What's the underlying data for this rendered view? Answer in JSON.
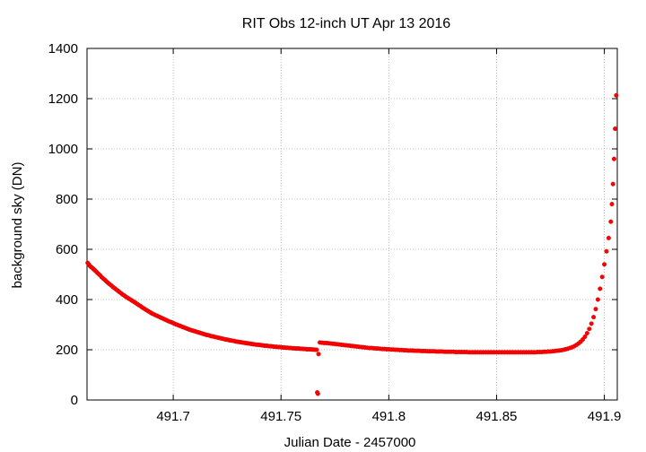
{
  "chart_data": {
    "type": "scatter",
    "title": "RIT Obs 12-inch UT Apr 13 2016",
    "xlabel": "Julian Date - 2457000",
    "ylabel": "background sky (DN)",
    "xlim": [
      491.66,
      491.906
    ],
    "ylim": [
      0,
      1400
    ],
    "x_ticks": [
      {
        "value": 491.7,
        "label": "491.7"
      },
      {
        "value": 491.75,
        "label": "491.75"
      },
      {
        "value": 491.8,
        "label": "491.8"
      },
      {
        "value": 491.85,
        "label": "491.85"
      },
      {
        "value": 491.9,
        "label": "491.9"
      }
    ],
    "y_ticks": [
      {
        "value": 0,
        "label": "0"
      },
      {
        "value": 200,
        "label": "200"
      },
      {
        "value": 400,
        "label": "400"
      },
      {
        "value": 600,
        "label": "600"
      },
      {
        "value": 800,
        "label": "800"
      },
      {
        "value": 1000,
        "label": "1000"
      },
      {
        "value": 1200,
        "label": "1200"
      },
      {
        "value": 1400,
        "label": "1400"
      }
    ],
    "grid": true,
    "marker_color": "#ff0000",
    "points": [
      [
        491.6603,
        546
      ],
      [
        491.6608,
        540
      ],
      [
        491.6613,
        534
      ],
      [
        491.6618,
        530
      ],
      [
        491.6623,
        527
      ],
      [
        491.6628,
        523
      ],
      [
        491.6633,
        519
      ],
      [
        491.6638,
        515
      ],
      [
        491.6645,
        509
      ],
      [
        491.6652,
        503
      ],
      [
        491.666,
        497
      ],
      [
        491.6668,
        489
      ],
      [
        491.6676,
        483
      ],
      [
        491.6683,
        478
      ],
      [
        491.669,
        472
      ],
      [
        491.6698,
        466
      ],
      [
        491.6705,
        461
      ],
      [
        491.6713,
        456
      ],
      [
        491.672,
        450
      ],
      [
        491.6728,
        445
      ],
      [
        491.6735,
        440
      ],
      [
        491.6743,
        435
      ],
      [
        491.675,
        430
      ],
      [
        491.6758,
        425
      ],
      [
        491.6765,
        420
      ],
      [
        491.6773,
        416
      ],
      [
        491.678,
        411
      ],
      [
        491.6788,
        407
      ],
      [
        491.6795,
        403
      ],
      [
        491.6803,
        399
      ],
      [
        491.681,
        395
      ],
      [
        491.6818,
        391
      ],
      [
        491.6825,
        387
      ],
      [
        491.6833,
        382
      ],
      [
        491.684,
        378
      ],
      [
        491.6848,
        374
      ],
      [
        491.6855,
        369
      ],
      [
        491.6863,
        365
      ],
      [
        491.687,
        361
      ],
      [
        491.6878,
        357
      ],
      [
        491.6885,
        353
      ],
      [
        491.6893,
        349
      ],
      [
        491.69,
        345
      ],
      [
        491.6908,
        342
      ],
      [
        491.6915,
        339
      ],
      [
        491.6923,
        336
      ],
      [
        491.693,
        333
      ],
      [
        491.6938,
        330
      ],
      [
        491.6945,
        327
      ],
      [
        491.6953,
        324
      ],
      [
        491.696,
        321
      ],
      [
        491.6968,
        318
      ],
      [
        491.6975,
        315
      ],
      [
        491.6983,
        312
      ],
      [
        491.699,
        310
      ],
      [
        491.6998,
        307
      ],
      [
        491.7005,
        304
      ],
      [
        491.7013,
        301
      ],
      [
        491.702,
        299
      ],
      [
        491.7028,
        296
      ],
      [
        491.7035,
        294
      ],
      [
        491.7043,
        291
      ],
      [
        491.705,
        289
      ],
      [
        491.7058,
        286
      ],
      [
        491.7065,
        284
      ],
      [
        491.7073,
        281
      ],
      [
        491.708,
        279
      ],
      [
        491.7088,
        277
      ],
      [
        491.7095,
        275
      ],
      [
        491.7103,
        273
      ],
      [
        491.711,
        271
      ],
      [
        491.7118,
        269
      ],
      [
        491.7125,
        267
      ],
      [
        491.7133,
        265
      ],
      [
        491.714,
        263
      ],
      [
        491.7148,
        261
      ],
      [
        491.7155,
        259
      ],
      [
        491.7163,
        258
      ],
      [
        491.717,
        256
      ],
      [
        491.7178,
        254
      ],
      [
        491.7185,
        253
      ],
      [
        491.7193,
        251
      ],
      [
        491.72,
        250
      ],
      [
        491.7208,
        248
      ],
      [
        491.7215,
        247
      ],
      [
        491.7223,
        245
      ],
      [
        491.723,
        244
      ],
      [
        491.7238,
        242
      ],
      [
        491.7245,
        241
      ],
      [
        491.7253,
        240
      ],
      [
        491.726,
        238
      ],
      [
        491.7268,
        237
      ],
      [
        491.7275,
        236
      ],
      [
        491.7283,
        235
      ],
      [
        491.729,
        233
      ],
      [
        491.7298,
        232
      ],
      [
        491.7305,
        231
      ],
      [
        491.7313,
        230
      ],
      [
        491.732,
        229
      ],
      [
        491.7328,
        228
      ],
      [
        491.7335,
        227
      ],
      [
        491.7343,
        226
      ],
      [
        491.735,
        225
      ],
      [
        491.7358,
        224
      ],
      [
        491.7365,
        223
      ],
      [
        491.7373,
        222
      ],
      [
        491.738,
        221
      ],
      [
        491.7388,
        220
      ],
      [
        491.7395,
        220
      ],
      [
        491.7403,
        219
      ],
      [
        491.741,
        218
      ],
      [
        491.7418,
        217
      ],
      [
        491.7425,
        216
      ],
      [
        491.7433,
        216
      ],
      [
        491.744,
        215
      ],
      [
        491.7448,
        214
      ],
      [
        491.7455,
        214
      ],
      [
        491.7463,
        213
      ],
      [
        491.747,
        212
      ],
      [
        491.7478,
        212
      ],
      [
        491.7485,
        211
      ],
      [
        491.7493,
        211
      ],
      [
        491.75,
        210
      ],
      [
        491.7508,
        209
      ],
      [
        491.7515,
        209
      ],
      [
        491.7523,
        208
      ],
      [
        491.753,
        208
      ],
      [
        491.7538,
        207
      ],
      [
        491.7545,
        207
      ],
      [
        491.7553,
        206
      ],
      [
        491.756,
        206
      ],
      [
        491.7568,
        205
      ],
      [
        491.7575,
        205
      ],
      [
        491.7583,
        205
      ],
      [
        491.759,
        204
      ],
      [
        491.7598,
        204
      ],
      [
        491.7605,
        203
      ],
      [
        491.7613,
        203
      ],
      [
        491.762,
        202
      ],
      [
        491.7628,
        202
      ],
      [
        491.7635,
        202
      ],
      [
        491.7643,
        201
      ],
      [
        491.765,
        201
      ],
      [
        491.7658,
        200
      ],
      [
        491.7665,
        200
      ],
      [
        491.7668,
        30
      ],
      [
        491.7671,
        25
      ],
      [
        491.7674,
        183
      ],
      [
        491.768,
        229
      ],
      [
        491.769,
        228
      ],
      [
        491.77,
        227
      ],
      [
        491.771,
        227
      ],
      [
        491.772,
        226
      ],
      [
        491.773,
        225
      ],
      [
        491.774,
        224
      ],
      [
        491.775,
        223
      ],
      [
        491.776,
        222
      ],
      [
        491.777,
        221
      ],
      [
        491.778,
        220
      ],
      [
        491.779,
        219
      ],
      [
        491.78,
        218
      ],
      [
        491.781,
        217
      ],
      [
        491.782,
        216
      ],
      [
        491.783,
        215
      ],
      [
        491.784,
        214
      ],
      [
        491.785,
        213
      ],
      [
        491.786,
        212
      ],
      [
        491.787,
        211
      ],
      [
        491.788,
        210
      ],
      [
        491.789,
        209
      ],
      [
        491.79,
        208
      ],
      [
        491.791,
        207
      ],
      [
        491.792,
        207
      ],
      [
        491.793,
        206
      ],
      [
        491.794,
        205
      ],
      [
        491.795,
        205
      ],
      [
        491.796,
        204
      ],
      [
        491.797,
        203
      ],
      [
        491.798,
        203
      ],
      [
        491.799,
        202
      ],
      [
        491.8,
        202
      ],
      [
        491.801,
        201
      ],
      [
        491.802,
        201
      ],
      [
        491.803,
        200
      ],
      [
        491.804,
        200
      ],
      [
        491.805,
        199
      ],
      [
        491.806,
        199
      ],
      [
        491.807,
        198
      ],
      [
        491.808,
        198
      ],
      [
        491.809,
        197
      ],
      [
        491.81,
        197
      ],
      [
        491.811,
        197
      ],
      [
        491.812,
        196
      ],
      [
        491.813,
        196
      ],
      [
        491.814,
        196
      ],
      [
        491.815,
        195
      ],
      [
        491.816,
        195
      ],
      [
        491.817,
        195
      ],
      [
        491.818,
        194
      ],
      [
        491.819,
        194
      ],
      [
        491.82,
        194
      ],
      [
        491.821,
        194
      ],
      [
        491.822,
        193
      ],
      [
        491.823,
        193
      ],
      [
        491.824,
        193
      ],
      [
        491.825,
        193
      ],
      [
        491.826,
        192
      ],
      [
        491.827,
        192
      ],
      [
        491.828,
        192
      ],
      [
        491.829,
        192
      ],
      [
        491.83,
        192
      ],
      [
        491.831,
        191
      ],
      [
        491.832,
        191
      ],
      [
        491.833,
        191
      ],
      [
        491.834,
        191
      ],
      [
        491.835,
        191
      ],
      [
        491.836,
        191
      ],
      [
        491.837,
        190
      ],
      [
        491.838,
        190
      ],
      [
        491.839,
        190
      ],
      [
        491.84,
        190
      ],
      [
        491.841,
        190
      ],
      [
        491.842,
        190
      ],
      [
        491.843,
        190
      ],
      [
        491.844,
        190
      ],
      [
        491.845,
        190
      ],
      [
        491.846,
        190
      ],
      [
        491.847,
        190
      ],
      [
        491.848,
        190
      ],
      [
        491.849,
        190
      ],
      [
        491.85,
        190
      ],
      [
        491.851,
        190
      ],
      [
        491.852,
        190
      ],
      [
        491.853,
        190
      ],
      [
        491.854,
        190
      ],
      [
        491.855,
        190
      ],
      [
        491.856,
        190
      ],
      [
        491.857,
        190
      ],
      [
        491.858,
        190
      ],
      [
        491.859,
        190
      ],
      [
        491.86,
        190
      ],
      [
        491.861,
        190
      ],
      [
        491.862,
        190
      ],
      [
        491.863,
        190
      ],
      [
        491.864,
        190
      ],
      [
        491.865,
        190
      ],
      [
        491.866,
        190
      ],
      [
        491.867,
        190
      ],
      [
        491.868,
        190
      ],
      [
        491.869,
        191
      ],
      [
        491.87,
        191
      ],
      [
        491.871,
        191
      ],
      [
        491.872,
        192
      ],
      [
        491.873,
        192
      ],
      [
        491.874,
        193
      ],
      [
        491.875,
        193
      ],
      [
        491.876,
        194
      ],
      [
        491.877,
        195
      ],
      [
        491.878,
        196
      ],
      [
        491.879,
        197
      ],
      [
        491.88,
        198
      ],
      [
        491.881,
        200
      ],
      [
        491.882,
        202
      ],
      [
        491.883,
        204
      ],
      [
        491.884,
        207
      ],
      [
        491.885,
        210
      ],
      [
        491.886,
        214
      ],
      [
        491.887,
        219
      ],
      [
        491.888,
        225
      ],
      [
        491.889,
        232
      ],
      [
        491.89,
        241
      ],
      [
        491.891,
        252
      ],
      [
        491.892,
        266
      ],
      [
        491.893,
        283
      ],
      [
        491.894,
        304
      ],
      [
        491.895,
        330
      ],
      [
        491.896,
        362
      ],
      [
        491.897,
        400
      ],
      [
        491.898,
        443
      ],
      [
        491.899,
        490
      ],
      [
        491.9,
        540
      ],
      [
        491.901,
        592
      ],
      [
        491.902,
        645
      ],
      [
        491.903,
        710
      ],
      [
        491.9035,
        780
      ],
      [
        491.904,
        860
      ],
      [
        491.9045,
        960
      ],
      [
        491.905,
        1080
      ],
      [
        491.9055,
        1213
      ]
    ]
  }
}
